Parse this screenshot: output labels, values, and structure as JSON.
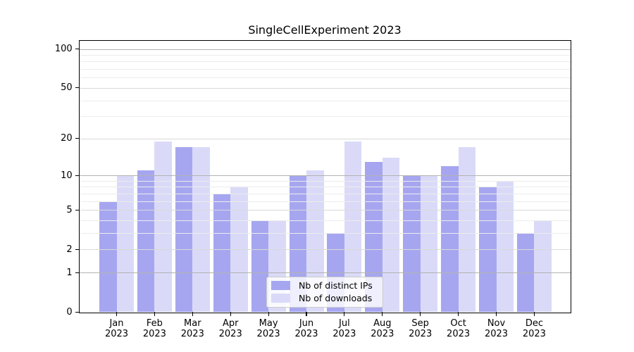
{
  "title": "SingleCellExperiment 2023",
  "chart_data": {
    "type": "bar",
    "title": "SingleCellExperiment 2023",
    "categories": [
      "Jan",
      "Feb",
      "Mar",
      "Apr",
      "May",
      "Jun",
      "Jul",
      "Aug",
      "Sep",
      "Oct",
      "Nov",
      "Dec"
    ],
    "year_label": "2023",
    "series": [
      {
        "key": "distinct-ips",
        "name": "Nb of distinct IPs",
        "color": "#a6a6f0",
        "values": [
          6,
          11,
          17,
          7,
          4,
          10,
          3,
          13,
          10,
          12,
          8,
          3
        ]
      },
      {
        "key": "downloads",
        "name": "Nb of downloads",
        "color": "#dadaf8",
        "values": [
          10,
          19,
          17,
          8,
          4,
          11,
          19,
          14,
          10,
          17,
          9,
          4
        ]
      }
    ],
    "y_axis": {
      "scale": "log(1+x)",
      "tick_values": [
        0,
        1,
        2,
        5,
        10,
        20,
        50,
        100
      ],
      "tick_labels": [
        "0",
        "1",
        "2",
        "5",
        "10",
        "20",
        "50",
        "100"
      ],
      "emphasized_gridline_values": [
        1,
        10,
        100
      ],
      "mid_gridline_values": [
        2,
        5,
        20,
        50
      ],
      "minor_gridline_values": [
        3,
        4,
        6,
        7,
        8,
        9,
        30,
        40,
        60,
        70,
        80,
        90
      ],
      "ylim_top": 115
    },
    "grid": true,
    "legend": {
      "position": "lower-center",
      "entries": [
        "Nb of distinct IPs",
        "Nb of downloads"
      ]
    },
    "grid_colors": {
      "major": "#b2b2b2",
      "mid": "#d9d9d9",
      "minor": "#ececec"
    },
    "axis_color": "#000000",
    "legend_border_color": "#cccccc"
  }
}
